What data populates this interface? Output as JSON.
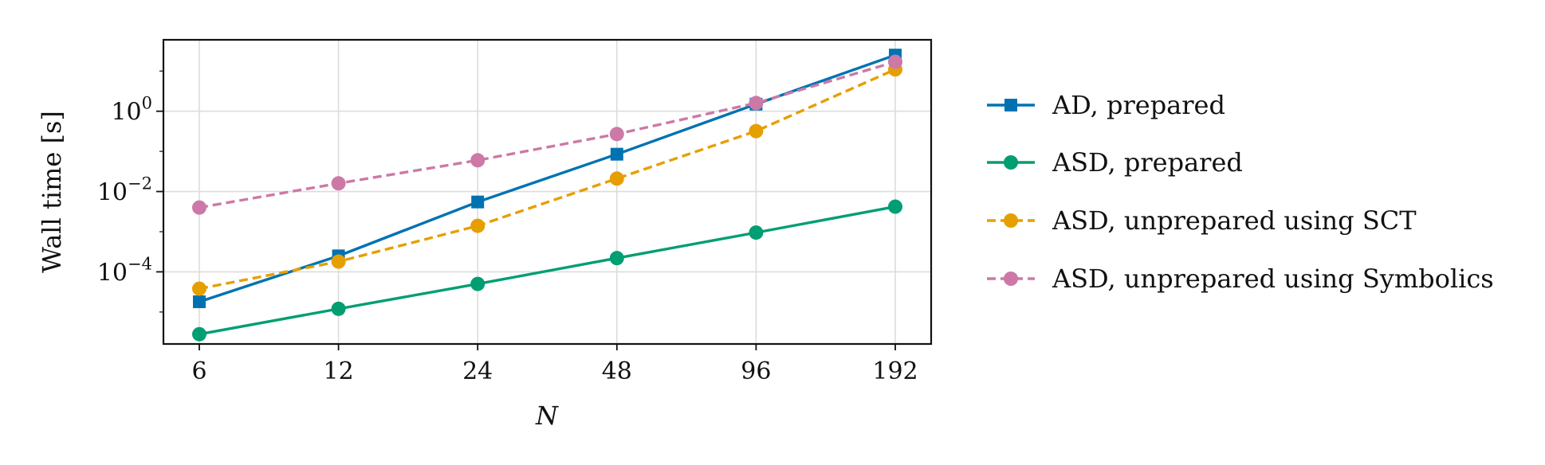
{
  "chart_data": {
    "type": "line",
    "xlabel": "N",
    "ylabel": "Wall time [s]",
    "x": [
      6,
      12,
      24,
      48,
      96,
      192
    ],
    "x_scale": "log2",
    "y_scale": "log10",
    "ylim": [
      1.6e-06,
      60
    ],
    "grid": true,
    "legend_position": "right-outside",
    "x_ticks": [
      {
        "value": 6,
        "label": "6"
      },
      {
        "value": 12,
        "label": "12"
      },
      {
        "value": 24,
        "label": "24"
      },
      {
        "value": 48,
        "label": "48"
      },
      {
        "value": 96,
        "label": "96"
      },
      {
        "value": 192,
        "label": "192"
      }
    ],
    "y_ticks": [
      {
        "value": 1,
        "base": "10",
        "exp": "0"
      },
      {
        "value": 0.01,
        "base": "10",
        "exp": "−2"
      },
      {
        "value": 0.0001,
        "base": "10",
        "exp": "−4"
      }
    ],
    "series": [
      {
        "name": "AD, prepared",
        "color": "#0072b2",
        "marker": "square",
        "dash": "solid",
        "values": [
          1.8e-05,
          0.00025,
          0.0055,
          0.085,
          1.5,
          25
        ]
      },
      {
        "name": "ASD, prepared",
        "color": "#009e73",
        "marker": "circle",
        "dash": "solid",
        "values": [
          2.8e-06,
          1.2e-05,
          5e-05,
          0.00022,
          0.00095,
          0.0042
        ]
      },
      {
        "name": "ASD, unprepared using SCT",
        "color": "#e69f00",
        "marker": "circle",
        "dash": "dashed",
        "values": [
          3.8e-05,
          0.00018,
          0.0014,
          0.021,
          0.32,
          11
        ]
      },
      {
        "name": "ASD, unprepared using Symbolics",
        "color": "#cc79a7",
        "marker": "circle",
        "dash": "dashed",
        "values": [
          0.004,
          0.016,
          0.06,
          0.27,
          1.6,
          17
        ]
      }
    ]
  }
}
